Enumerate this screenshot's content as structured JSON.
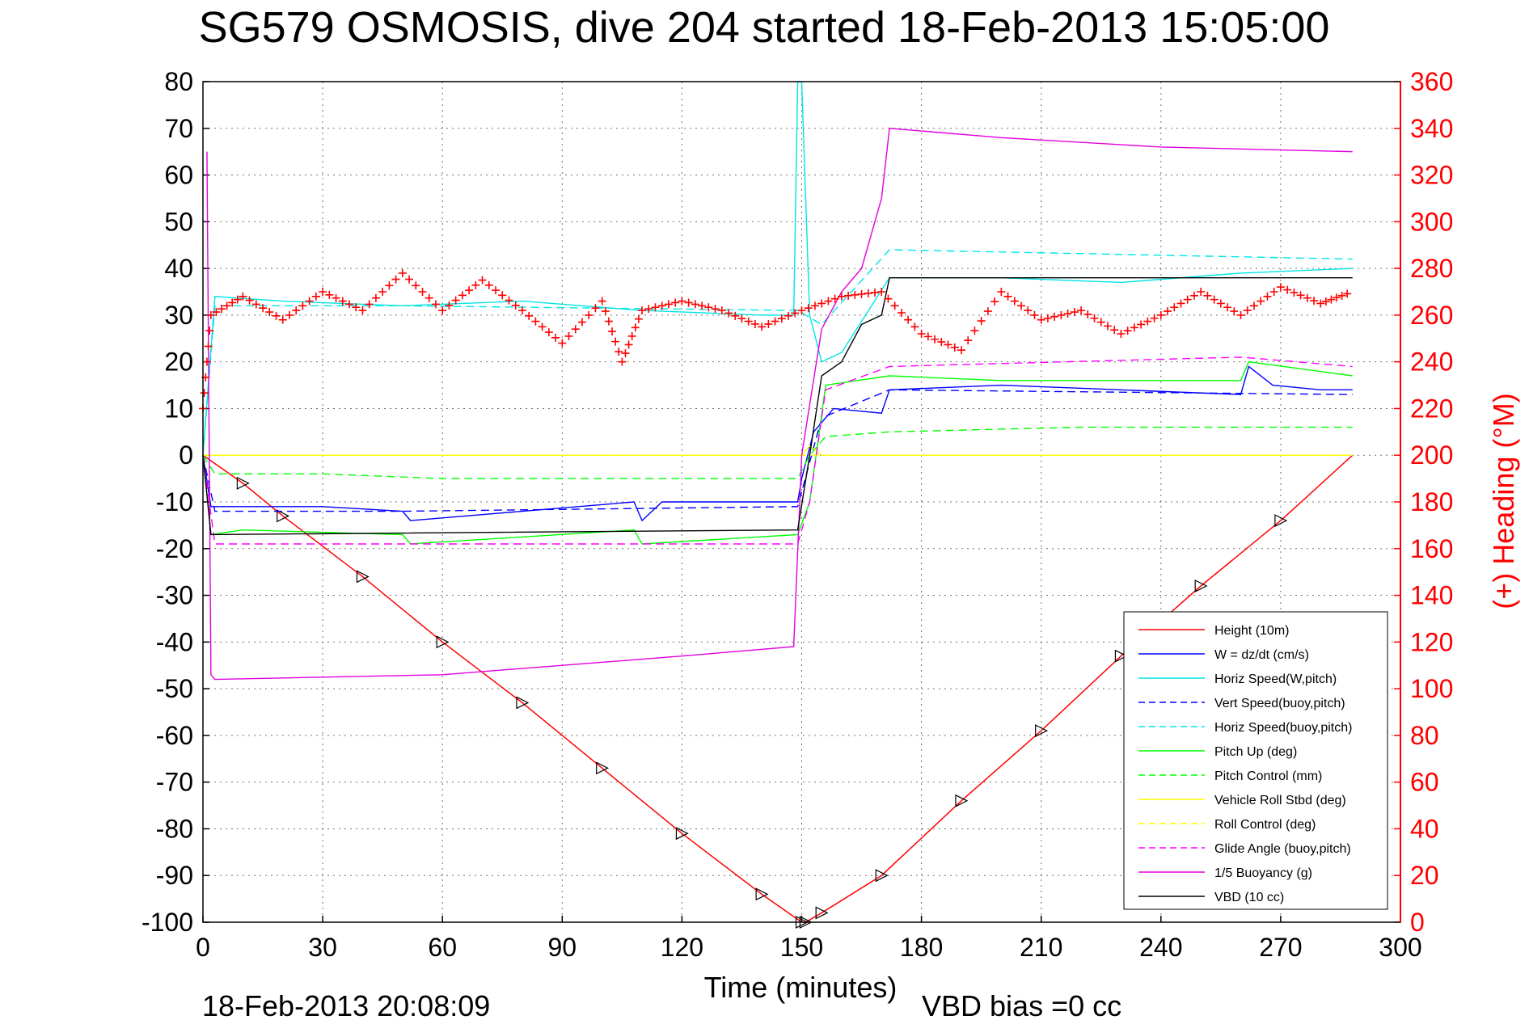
{
  "chart_data": {
    "type": "line",
    "title": "SG579 OSMOSIS, dive 204 started 18-Feb-2013 15:05:00",
    "xlabel": "Time (minutes)",
    "ylabel": "",
    "y2label": "(+) Heading (°M)",
    "footer_left": "18-Feb-2013 20:08:09",
    "footer_right": "VBD bias =0 cc",
    "xlim": [
      0,
      300
    ],
    "ylim": [
      -100,
      80
    ],
    "y2lim": [
      0,
      360
    ],
    "x_ticks": [
      "0",
      "30",
      "60",
      "90",
      "120",
      "150",
      "180",
      "210",
      "240",
      "270",
      "300"
    ],
    "y_ticks": [
      "80",
      "70",
      "60",
      "50",
      "40",
      "30",
      "20",
      "10",
      "0",
      "-10",
      "-20",
      "-30",
      "-40",
      "-50",
      "-60",
      "-70",
      "-80",
      "-90",
      "-100"
    ],
    "y2_ticks": [
      "360",
      "340",
      "320",
      "300",
      "280",
      "260",
      "240",
      "220",
      "200",
      "180",
      "160",
      "140",
      "120",
      "100",
      "80",
      "60",
      "40",
      "20",
      "0"
    ],
    "grid": true,
    "legend_position": "bottom-right",
    "series": [
      {
        "name": "Height (10m)",
        "color": "#ff0000",
        "style": "solid",
        "x": [
          0,
          10,
          20,
          40,
          60,
          80,
          100,
          120,
          140,
          150,
          151,
          155,
          170,
          190,
          210,
          230,
          250,
          270,
          288
        ],
        "y": [
          0,
          -6,
          -13,
          -26,
          -40,
          -53,
          -67,
          -81,
          -94,
          -100,
          -100,
          -98,
          -90,
          -74,
          -59,
          -43,
          -28,
          -14,
          0
        ]
      },
      {
        "name": "W = dz/dt (cm/s)",
        "color": "#0000ff",
        "style": "solid",
        "x": [
          0,
          2,
          10,
          30,
          50,
          52,
          80,
          108,
          110,
          115,
          120,
          130,
          140,
          149,
          150,
          153,
          158,
          170,
          172,
          200,
          230,
          260,
          262,
          268,
          280,
          288
        ],
        "y": [
          0,
          -11,
          -11,
          -11,
          -12,
          -14,
          -12,
          -10,
          -14,
          -10,
          -10,
          -10,
          -10,
          -10,
          -5,
          5,
          10,
          9,
          14,
          15,
          14,
          13,
          19,
          15,
          14,
          14
        ]
      },
      {
        "name": "Horiz Speed(W,pitch)",
        "color": "#00e5e5",
        "style": "solid",
        "x": [
          0,
          3,
          20,
          50,
          80,
          110,
          140,
          148,
          149,
          150,
          152,
          155,
          160,
          172,
          200,
          230,
          260,
          288
        ],
        "y": [
          0,
          34,
          33,
          32,
          33,
          31,
          30,
          30,
          80,
          80,
          30,
          20,
          22,
          38,
          38,
          37,
          39,
          40
        ]
      },
      {
        "name": "Vert Speed(buoy,pitch)",
        "color": "#0000ff",
        "style": "dashed",
        "x": [
          0,
          3,
          50,
          149,
          155,
          172,
          288
        ],
        "y": [
          0,
          -12,
          -12,
          -11,
          8,
          14,
          13
        ]
      },
      {
        "name": "Horiz Speed(buoy,pitch)",
        "color": "#00e5e5",
        "style": "dashed",
        "x": [
          0,
          3,
          50,
          149,
          155,
          172,
          288
        ],
        "y": [
          0,
          32,
          32,
          31,
          28,
          44,
          42
        ]
      },
      {
        "name": "Pitch Up (deg)",
        "color": "#00ff00",
        "style": "solid",
        "x": [
          0,
          2,
          10,
          50,
          52,
          108,
          110,
          149,
          152,
          156,
          172,
          200,
          260,
          262,
          288
        ],
        "y": [
          0,
          -17,
          -16,
          -17,
          -19,
          -16,
          -19,
          -17,
          -10,
          15,
          17,
          16,
          16,
          20,
          17
        ]
      },
      {
        "name": "Pitch Control (mm)",
        "color": "#00ff00",
        "style": "dashed",
        "x": [
          0,
          3,
          30,
          60,
          90,
          120,
          149,
          152,
          156,
          172,
          220,
          288
        ],
        "y": [
          0,
          -4,
          -4,
          -5,
          -5,
          -5,
          -5,
          0,
          4,
          5,
          6,
          6
        ]
      },
      {
        "name": "Vehicle Roll Stbd (deg)",
        "color": "#ffff00",
        "style": "solid",
        "x": [
          0,
          3,
          150,
          152,
          155,
          200,
          288
        ],
        "y": [
          0,
          0,
          0,
          2,
          0,
          0,
          0
        ]
      },
      {
        "name": "Roll Control (deg)",
        "color": "#ffff00",
        "style": "dashed",
        "x": [
          0,
          3,
          150,
          155,
          288
        ],
        "y": [
          0,
          0,
          0,
          0,
          0
        ]
      },
      {
        "name": "Glide Angle (buoy,pitch)",
        "color": "#ff00ff",
        "style": "dashed",
        "x": [
          0,
          3,
          50,
          149,
          152,
          156,
          172,
          260,
          288
        ],
        "y": [
          0,
          -19,
          -19,
          -19,
          -10,
          14,
          19,
          21,
          19
        ]
      },
      {
        "name": "1/5 Buoyancy (g)",
        "color": "#e000e0",
        "style": "solid",
        "x": [
          1,
          2,
          3,
          60,
          120,
          148,
          150,
          155,
          160,
          165,
          170,
          172,
          200,
          240,
          288
        ],
        "y": [
          65,
          -47,
          -48,
          -47,
          -43,
          -41,
          0,
          27,
          35,
          40,
          55,
          70,
          68,
          66,
          65
        ]
      },
      {
        "name": "VBD (10 cc)",
        "color": "#000000",
        "style": "solid",
        "x": [
          0,
          2,
          149,
          152,
          155,
          160,
          165,
          170,
          172,
          288
        ],
        "y": [
          0,
          -17,
          -16,
          0,
          17,
          20,
          28,
          30,
          38,
          38
        ]
      },
      {
        "name": "Heading",
        "color": "#ff0000",
        "style": "plus",
        "axis": "right",
        "x": [
          0,
          2,
          10,
          20,
          30,
          40,
          50,
          60,
          70,
          80,
          90,
          100,
          105,
          110,
          120,
          130,
          140,
          150,
          160,
          170,
          180,
          190,
          200,
          210,
          220,
          230,
          240,
          250,
          260,
          270,
          280,
          288
        ],
        "y": [
          220,
          260,
          268,
          258,
          270,
          262,
          278,
          262,
          275,
          262,
          248,
          266,
          240,
          262,
          266,
          262,
          255,
          262,
          268,
          270,
          252,
          245,
          270,
          258,
          262,
          252,
          260,
          270,
          260,
          272,
          265,
          270
        ]
      }
    ]
  }
}
